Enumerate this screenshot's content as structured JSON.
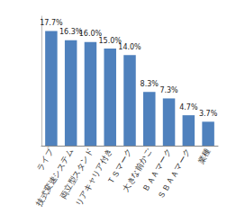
{
  "chart_data": {
    "type": "bar",
    "categories": [
      "ライプ",
      "技式変速システム",
      "両立型スタンド",
      "リアキャリア付き",
      "ＴＳマーク",
      "大きな前かご",
      "ＢＡＡマーク",
      "ＳＢＡＡマーク",
      "業種"
    ],
    "values": [
      17.7,
      16.3,
      16.0,
      15.0,
      14.0,
      8.3,
      7.3,
      4.7,
      3.7
    ],
    "value_labels": [
      "17.7%",
      "16.3%",
      "16.0%",
      "15.0%",
      "14.0%",
      "8.3%",
      "7.3%",
      "4.7%",
      "3.7%"
    ],
    "color": "#4f81bd",
    "ylim": [
      0,
      20
    ],
    "grid": false,
    "data_labels": true,
    "tick_labels": "x"
  }
}
